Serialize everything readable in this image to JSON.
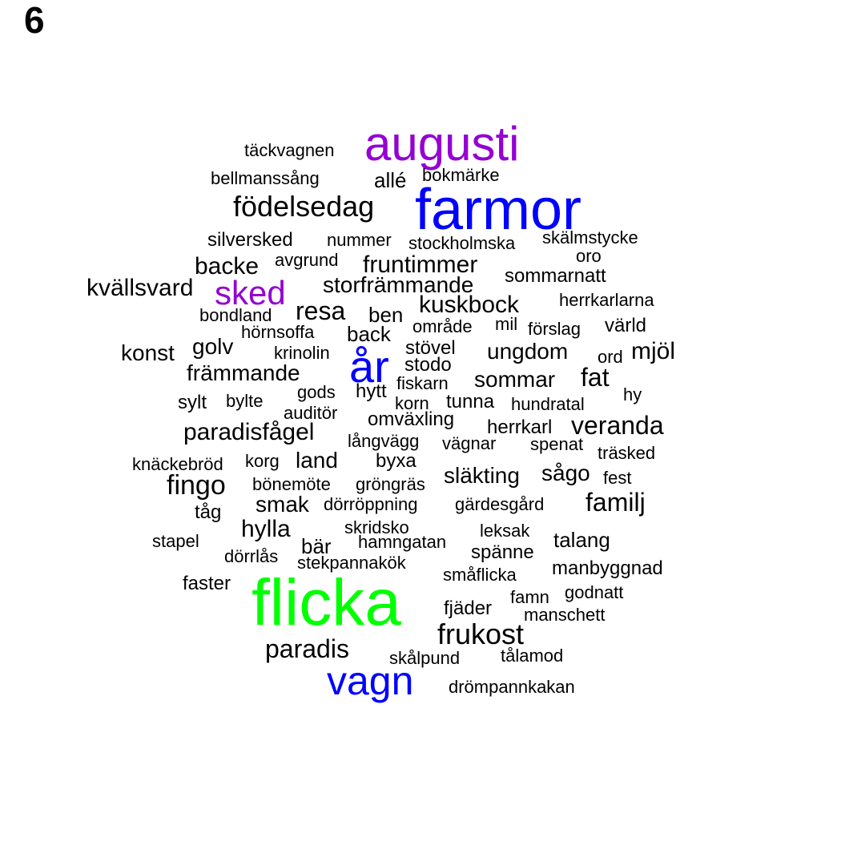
{
  "panel_label": "6",
  "colors": {
    "default": "#000000",
    "purple": "#9400d3",
    "blue": "#0000ff",
    "green": "#00ff00"
  },
  "words": [
    {
      "text": "augusti",
      "color": "#9400d3"
    },
    {
      "text": "täckvagnen",
      "color": "#000000"
    },
    {
      "text": "bellmanssång",
      "color": "#000000"
    },
    {
      "text": "allé",
      "color": "#000000"
    },
    {
      "text": "bokmärke",
      "color": "#000000"
    },
    {
      "text": "farmor",
      "color": "#0000ff"
    },
    {
      "text": "födelsedag",
      "color": "#000000"
    },
    {
      "text": "silversked",
      "color": "#000000"
    },
    {
      "text": "nummer",
      "color": "#000000"
    },
    {
      "text": "stockholmska",
      "color": "#000000"
    },
    {
      "text": "skälmstycke",
      "color": "#000000"
    },
    {
      "text": "oro",
      "color": "#000000"
    },
    {
      "text": "avgrund",
      "color": "#000000"
    },
    {
      "text": "backe",
      "color": "#000000"
    },
    {
      "text": "fruntimmer",
      "color": "#000000"
    },
    {
      "text": "sommarnatt",
      "color": "#000000"
    },
    {
      "text": "kvällsvard",
      "color": "#000000"
    },
    {
      "text": "sked",
      "color": "#9400d3"
    },
    {
      "text": "storfrämmande",
      "color": "#000000"
    },
    {
      "text": "kuskbock",
      "color": "#000000"
    },
    {
      "text": "herrkarlarna",
      "color": "#000000"
    },
    {
      "text": "resa",
      "color": "#000000"
    },
    {
      "text": "ben",
      "color": "#000000"
    },
    {
      "text": "bondland",
      "color": "#000000"
    },
    {
      "text": "område",
      "color": "#000000"
    },
    {
      "text": "mil",
      "color": "#000000"
    },
    {
      "text": "förslag",
      "color": "#000000"
    },
    {
      "text": "värld",
      "color": "#000000"
    },
    {
      "text": "hörnsoffa",
      "color": "#000000"
    },
    {
      "text": "back",
      "color": "#000000"
    },
    {
      "text": "golv",
      "color": "#000000"
    },
    {
      "text": "krinolin",
      "color": "#000000"
    },
    {
      "text": "stövel",
      "color": "#000000"
    },
    {
      "text": "ungdom",
      "color": "#000000"
    },
    {
      "text": "ord",
      "color": "#000000"
    },
    {
      "text": "mjöl",
      "color": "#000000"
    },
    {
      "text": "konst",
      "color": "#000000"
    },
    {
      "text": "år",
      "color": "#0000ff"
    },
    {
      "text": "stodo",
      "color": "#000000"
    },
    {
      "text": "främmande",
      "color": "#000000"
    },
    {
      "text": "sommar",
      "color": "#000000"
    },
    {
      "text": "fat",
      "color": "#000000"
    },
    {
      "text": "fiskarn",
      "color": "#000000"
    },
    {
      "text": "gods",
      "color": "#000000"
    },
    {
      "text": "hytt",
      "color": "#000000"
    },
    {
      "text": "hy",
      "color": "#000000"
    },
    {
      "text": "sylt",
      "color": "#000000"
    },
    {
      "text": "bylte",
      "color": "#000000"
    },
    {
      "text": "korn",
      "color": "#000000"
    },
    {
      "text": "tunna",
      "color": "#000000"
    },
    {
      "text": "hundratal",
      "color": "#000000"
    },
    {
      "text": "auditör",
      "color": "#000000"
    },
    {
      "text": "omväxling",
      "color": "#000000"
    },
    {
      "text": "veranda",
      "color": "#000000"
    },
    {
      "text": "herrkarl",
      "color": "#000000"
    },
    {
      "text": "paradisfågel",
      "color": "#000000"
    },
    {
      "text": "långvägg",
      "color": "#000000"
    },
    {
      "text": "vägnar",
      "color": "#000000"
    },
    {
      "text": "spenat",
      "color": "#000000"
    },
    {
      "text": "träsked",
      "color": "#000000"
    },
    {
      "text": "knäckebröd",
      "color": "#000000"
    },
    {
      "text": "korg",
      "color": "#000000"
    },
    {
      "text": "land",
      "color": "#000000"
    },
    {
      "text": "byxa",
      "color": "#000000"
    },
    {
      "text": "släkting",
      "color": "#000000"
    },
    {
      "text": "sågo",
      "color": "#000000"
    },
    {
      "text": "fest",
      "color": "#000000"
    },
    {
      "text": "fingo",
      "color": "#000000"
    },
    {
      "text": "bönemöte",
      "color": "#000000"
    },
    {
      "text": "gröngräs",
      "color": "#000000"
    },
    {
      "text": "smak",
      "color": "#000000"
    },
    {
      "text": "dörröppning",
      "color": "#000000"
    },
    {
      "text": "gärdesgård",
      "color": "#000000"
    },
    {
      "text": "familj",
      "color": "#000000"
    },
    {
      "text": "tåg",
      "color": "#000000"
    },
    {
      "text": "skridsko",
      "color": "#000000"
    },
    {
      "text": "hylla",
      "color": "#000000"
    },
    {
      "text": "leksak",
      "color": "#000000"
    },
    {
      "text": "stapel",
      "color": "#000000"
    },
    {
      "text": "talang",
      "color": "#000000"
    },
    {
      "text": "bär",
      "color": "#000000"
    },
    {
      "text": "hamngatan",
      "color": "#000000"
    },
    {
      "text": "spänne",
      "color": "#000000"
    },
    {
      "text": "dörrlås",
      "color": "#000000"
    },
    {
      "text": "stekpannakök",
      "color": "#000000"
    },
    {
      "text": "manbyggnad",
      "color": "#000000"
    },
    {
      "text": "småflicka",
      "color": "#000000"
    },
    {
      "text": "faster",
      "color": "#000000"
    },
    {
      "text": "flicka",
      "color": "#00ff00"
    },
    {
      "text": "godnatt",
      "color": "#000000"
    },
    {
      "text": "famn",
      "color": "#000000"
    },
    {
      "text": "fjäder",
      "color": "#000000"
    },
    {
      "text": "manschett",
      "color": "#000000"
    },
    {
      "text": "frukost",
      "color": "#000000"
    },
    {
      "text": "paradis",
      "color": "#000000"
    },
    {
      "text": "skålpund",
      "color": "#000000"
    },
    {
      "text": "tålamod",
      "color": "#000000"
    },
    {
      "text": "vagn",
      "color": "#0000ff"
    },
    {
      "text": "drömpannkakan",
      "color": "#000000"
    }
  ]
}
